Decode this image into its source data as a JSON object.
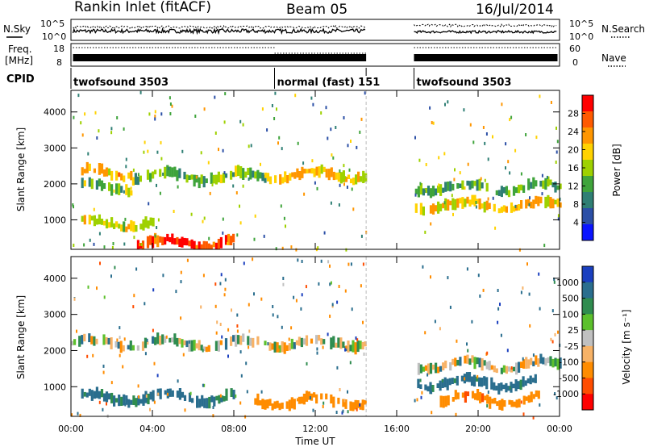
{
  "header": {
    "radar": "Rankin Inlet (fitACF)",
    "beam": "Beam 05",
    "date": "16/Jul/2014"
  },
  "status_panel": {
    "left_nsky": "N.Sky",
    "left_freq": "Freq.",
    "left_freq_unit": "[MHz]",
    "left_cpid": "CPID",
    "right_nsearch": "N.Search",
    "right_nave": "Nave",
    "nsky_ticks": [
      "10^5",
      "10^0"
    ],
    "freq_ticks": [
      "18",
      "8"
    ],
    "nsearch_ticks": [
      "10^5",
      "10^0"
    ],
    "nave_ticks": [
      "60",
      "0"
    ],
    "cpid_segments": [
      {
        "label": "twofsound 3503",
        "start": 0.0,
        "end": 10.0
      },
      {
        "label": "normal (fast) 151",
        "start": 10.0,
        "end": 14.5
      },
      {
        "label": "twofsound 3503",
        "start": 16.85,
        "end": 24.0
      }
    ]
  },
  "colorbars": {
    "power": {
      "label": "Power [dB]",
      "ticks": [
        "28",
        "24",
        "20",
        "16",
        "12",
        "8",
        "4"
      ],
      "colors": [
        "#ff0000",
        "#ff5a00",
        "#ff9600",
        "#ffd200",
        "#9ed100",
        "#3fa43b",
        "#2f7f74",
        "#2b4fa6",
        "#0a14ff"
      ]
    },
    "velocity": {
      "label": "Velocity [m s⁻¹]",
      "ticks": [
        "1000",
        "500",
        "100",
        "25",
        "-25",
        "-100",
        "-500",
        "-1000"
      ],
      "colors": [
        "#1a3fbf",
        "#2a6e8e",
        "#2f8c4f",
        "#5cc02c",
        "#c0c0c0",
        "#f7b266",
        "#ff8c00",
        "#ff4d00",
        "#ff0000"
      ]
    }
  },
  "chart_data": {
    "type": "heatmap",
    "xlabel": "Time UT",
    "ylabel": "Slant Range [km]",
    "x_ticks": [
      "00:00",
      "04:00",
      "08:00",
      "12:00",
      "16:00",
      "20:00",
      "00:00"
    ],
    "xlim_hours": [
      0,
      24
    ],
    "y_ticks": [
      1000,
      2000,
      3000,
      4000
    ],
    "ylim_km": [
      180,
      4600
    ],
    "data_gap_hours": [
      14.5,
      16.85
    ],
    "power_panel": {
      "quantity": "Power [dB]",
      "bands": [
        {
          "t_start": 0.5,
          "t_end": 3.0,
          "range_km": 2300,
          "value_db": 22
        },
        {
          "t_start": 3.0,
          "t_end": 9.5,
          "range_km": 2200,
          "value_db": 14
        },
        {
          "t_start": 9.5,
          "t_end": 14.5,
          "range_km": 2250,
          "value_db": 20
        },
        {
          "t_start": 0.5,
          "t_end": 3.0,
          "range_km": 1900,
          "value_db": 14
        },
        {
          "t_start": 0.5,
          "t_end": 4.0,
          "range_km": 900,
          "value_db": 18
        },
        {
          "t_start": 3.0,
          "t_end": 8.0,
          "range_km": 350,
          "value_db": 28
        },
        {
          "t_start": 16.9,
          "t_end": 24.0,
          "range_km": 1400,
          "value_db": 20
        },
        {
          "t_start": 16.9,
          "t_end": 24.0,
          "range_km": 1900,
          "value_db": 12
        }
      ]
    },
    "velocity_panel": {
      "quantity": "Velocity [m s⁻¹]",
      "bands": [
        {
          "t_start": 0.0,
          "t_end": 14.5,
          "range_km": 2200,
          "value_ms": 0
        },
        {
          "t_start": 0.5,
          "t_end": 8.0,
          "range_km": 700,
          "value_ms": 150
        },
        {
          "t_start": 9.0,
          "t_end": 14.5,
          "range_km": 600,
          "value_ms": -300
        },
        {
          "t_start": 16.9,
          "t_end": 24.0,
          "range_km": 1600,
          "value_ms": 0
        },
        {
          "t_start": 18.0,
          "t_end": 23.0,
          "range_km": 650,
          "value_ms": -400
        },
        {
          "t_start": 17.0,
          "t_end": 23.0,
          "range_km": 1100,
          "value_ms": 200
        }
      ]
    }
  }
}
